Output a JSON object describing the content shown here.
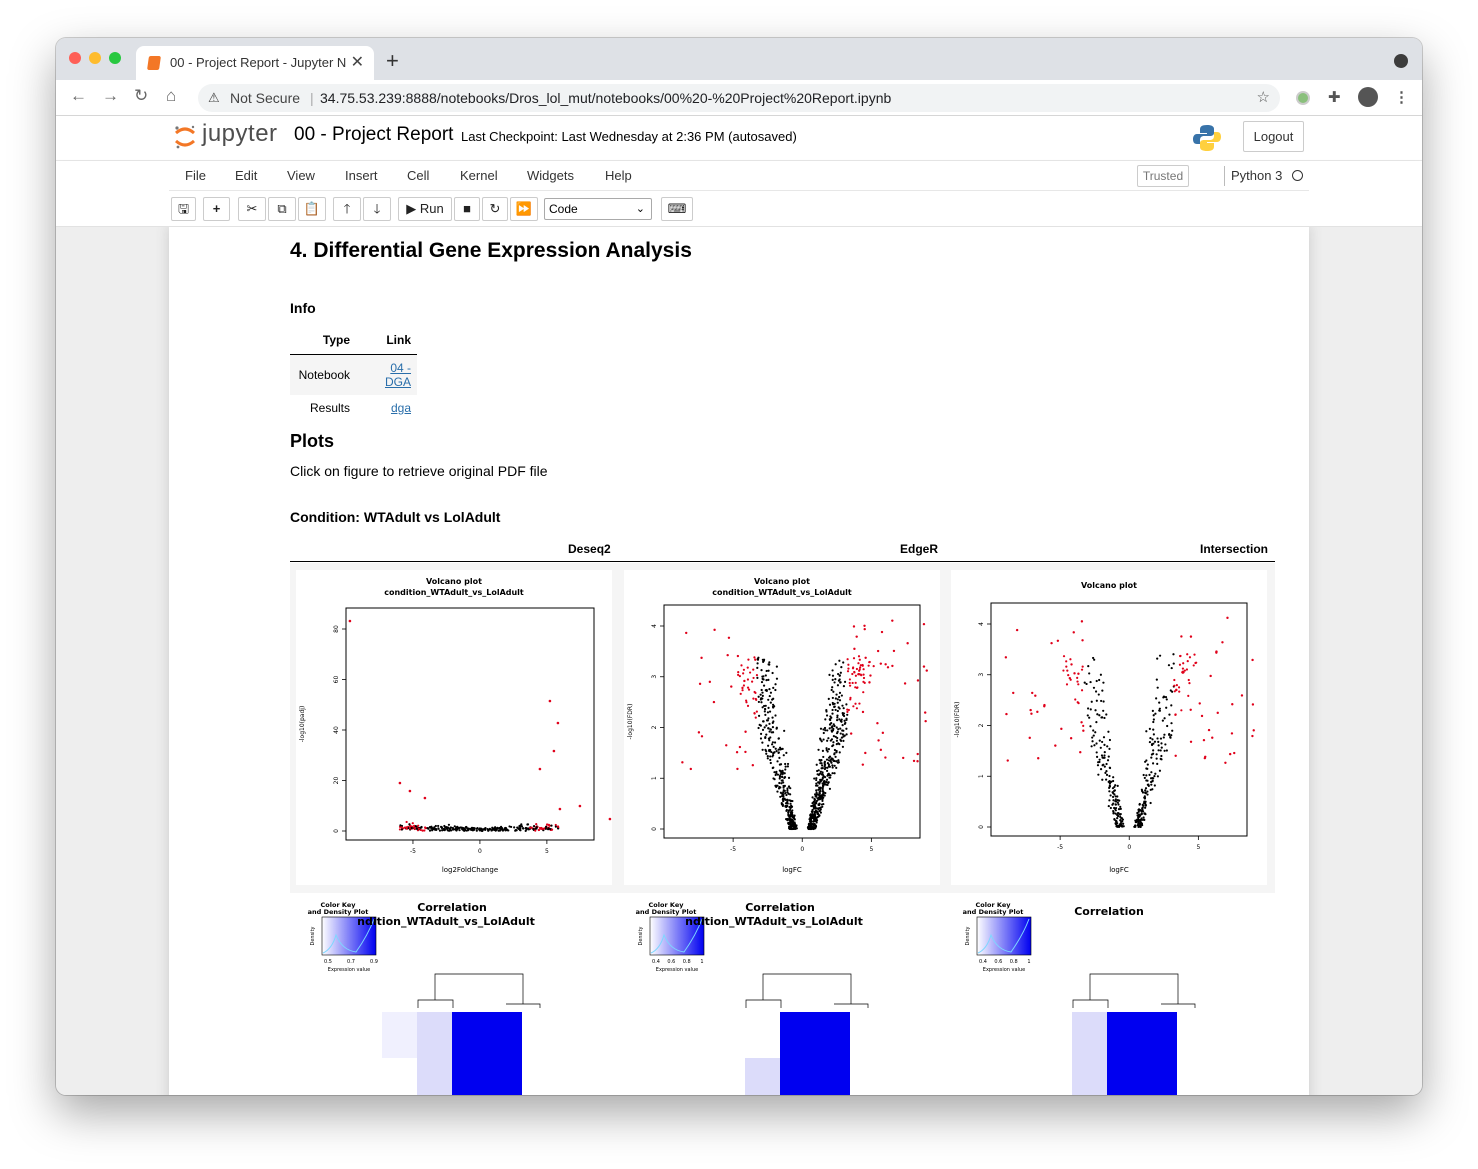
{
  "browser": {
    "tab_title": "00 - Project Report - Jupyter N",
    "tab_close": "✕",
    "new_tab": "+",
    "security": "Not Secure",
    "url": "34.75.53.239:8888/notebooks/Dros_lol_mut/notebooks/00%20-%20Project%20Report.ipynb"
  },
  "jupyter": {
    "logo_text": "jupyter",
    "notebook_title": "00 - Project Report",
    "checkpoint": "Last Checkpoint: Last Wednesday at 2:36 PM  (autosaved)",
    "logout": "Logout",
    "menu": [
      "File",
      "Edit",
      "View",
      "Insert",
      "Cell",
      "Kernel",
      "Widgets",
      "Help"
    ],
    "trusted": "Trusted",
    "kernel": "Python 3",
    "run_label": "Run",
    "cell_type": "Code",
    "toolbar_icons": [
      "save-icon",
      "plus-icon",
      "scissors-icon",
      "copy-icon",
      "paste-icon",
      "arrow-up-icon",
      "arrow-down-icon",
      "run-icon",
      "stop-icon",
      "restart-icon",
      "fast-forward-icon",
      "keyboard-icon"
    ]
  },
  "notebook": {
    "section_title": "4. Differential Gene Expression Analysis",
    "info_heading": "Info",
    "info_table": {
      "headers": [
        "Type",
        "Link"
      ],
      "rows": [
        [
          "Notebook",
          "04 - DGA"
        ],
        [
          "Results",
          "dga"
        ]
      ]
    },
    "plots_heading": "Plots",
    "plots_note": "Click on figure to retrieve original PDF file",
    "condition": "Condition: WTAdult vs LolAdult",
    "columns": [
      "Deseq2",
      "EdgeR",
      "Intersection"
    ],
    "volcano": [
      {
        "title1": "Volcano plot",
        "title2": "condition_WTAdult_vs_LolAdult",
        "xlabel": "log2FoldChange",
        "ylabel": "-log10(padj)",
        "yticks": [
          "0",
          "20",
          "40",
          "60",
          "80"
        ],
        "xticks": [
          "-5",
          "0",
          "5"
        ]
      },
      {
        "title1": "Volcano plot",
        "title2": "condition_WTAdult_vs_LolAdult",
        "xlabel": "logFC",
        "ylabel": "-log10(FDR)",
        "yticks": [
          "0",
          "1",
          "2",
          "3",
          "4"
        ],
        "xticks": [
          "-5",
          "0",
          "5"
        ]
      },
      {
        "title1": "Volcano plot",
        "title2": "",
        "xlabel": "logFC",
        "ylabel": "-log10(FDR)",
        "yticks": [
          "0",
          "1",
          "2",
          "3",
          "4"
        ],
        "xticks": [
          "-5",
          "0",
          "5"
        ]
      }
    ],
    "heatmaps": [
      {
        "key_title": "Color Key",
        "key_sub": "and Density Plot",
        "title1": "Correlation",
        "title2": "ndition_WTAdult_vs_LolAdult",
        "key_ticks": [
          "0.5",
          "0.7",
          "0.9"
        ],
        "key_xlabel": "Expression value",
        "key_ylabel": "Density"
      },
      {
        "key_title": "Color Key",
        "key_sub": "and Density Plot",
        "title1": "Correlation",
        "title2": "ndition_WTAdult_vs_LolAdult",
        "key_ticks": [
          "0.4",
          "0.6",
          "0.8",
          "1"
        ],
        "key_xlabel": "Expression value",
        "key_ylabel": "Density"
      },
      {
        "key_title": "Color Key",
        "key_sub": "and Density Plot",
        "title1": "Correlation",
        "title2": "",
        "key_ticks": [
          "0.4",
          "0.6",
          "0.8",
          "1"
        ],
        "key_xlabel": "Expression value",
        "key_ylabel": "Density"
      }
    ]
  }
}
